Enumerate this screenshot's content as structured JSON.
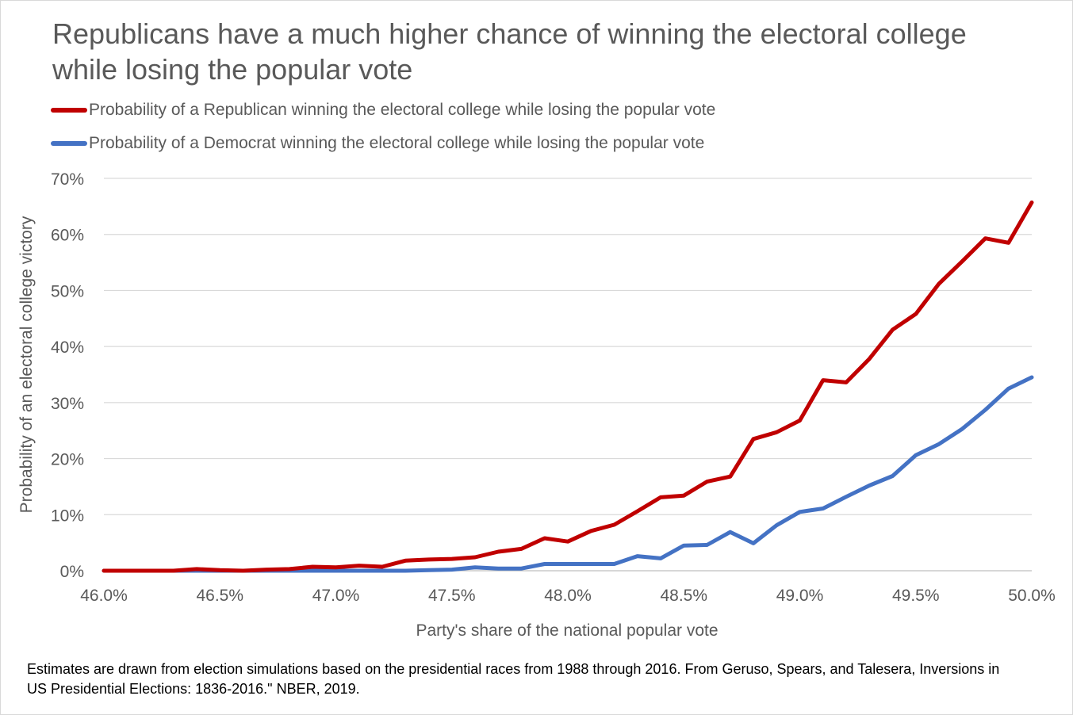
{
  "title": "Republicans have a much higher chance of winning the electoral college while losing the popular vote",
  "note": "Estimates are drawn from election simulations based on the presidential races from 1988 through 2016. From Geruso, Spears, and Talesera, Inversions in US Presidential Elections: 1836-2016.\" NBER, 2019.",
  "chart_data": {
    "type": "line",
    "xlabel": "Party's share of the national popular vote",
    "ylabel": "Probability of an electoral college victory",
    "xlim": [
      46.0,
      50.0
    ],
    "ylim": [
      0,
      70
    ],
    "x_ticks": [
      "46.0%",
      "46.5%",
      "47.0%",
      "47.5%",
      "48.0%",
      "48.5%",
      "49.0%",
      "49.5%",
      "50.0%"
    ],
    "y_ticks": [
      "0%",
      "10%",
      "20%",
      "30%",
      "40%",
      "50%",
      "60%",
      "70%"
    ],
    "grid": "horizontal",
    "legend_position": "top-left",
    "x": [
      46.0,
      46.1,
      46.2,
      46.3,
      46.4,
      46.5,
      46.6,
      46.7,
      46.8,
      46.9,
      47.0,
      47.1,
      47.2,
      47.3,
      47.4,
      47.5,
      47.6,
      47.7,
      47.8,
      47.9,
      48.0,
      48.1,
      48.2,
      48.3,
      48.4,
      48.5,
      48.6,
      48.7,
      48.8,
      48.9,
      49.0,
      49.1,
      49.2,
      49.3,
      49.4,
      49.5,
      49.6,
      49.7,
      49.8,
      49.9,
      50.0
    ],
    "series": [
      {
        "name": "Probability of a Republican winning the electoral college while losing the popular vote",
        "color": "#c00000",
        "values": [
          0.0,
          0.0,
          0.0,
          0.0,
          0.3,
          0.1,
          0.0,
          0.2,
          0.3,
          0.7,
          0.6,
          0.9,
          0.7,
          1.8,
          2.0,
          2.1,
          2.4,
          3.4,
          3.9,
          5.8,
          5.2,
          7.1,
          8.2,
          10.6,
          13.1,
          13.4,
          15.9,
          16.8,
          23.5,
          24.7,
          26.8,
          34.0,
          33.6,
          37.8,
          43.0,
          45.8,
          51.2,
          55.2,
          59.3,
          58.5,
          65.7
        ]
      },
      {
        "name": "Probability of a Democrat winning the electoral college while losing the popular vote",
        "color": "#4472c4",
        "values": [
          0.0,
          0.0,
          0.0,
          0.0,
          0.0,
          0.0,
          0.0,
          0.0,
          0.0,
          0.0,
          0.0,
          0.0,
          0.0,
          0.0,
          0.1,
          0.2,
          0.6,
          0.4,
          0.4,
          1.2,
          1.2,
          1.2,
          1.2,
          2.6,
          2.2,
          4.5,
          4.6,
          6.9,
          4.9,
          8.1,
          10.5,
          11.1,
          13.2,
          15.2,
          16.9,
          20.6,
          22.6,
          25.3,
          28.7,
          32.5,
          34.5
        ]
      }
    ]
  }
}
